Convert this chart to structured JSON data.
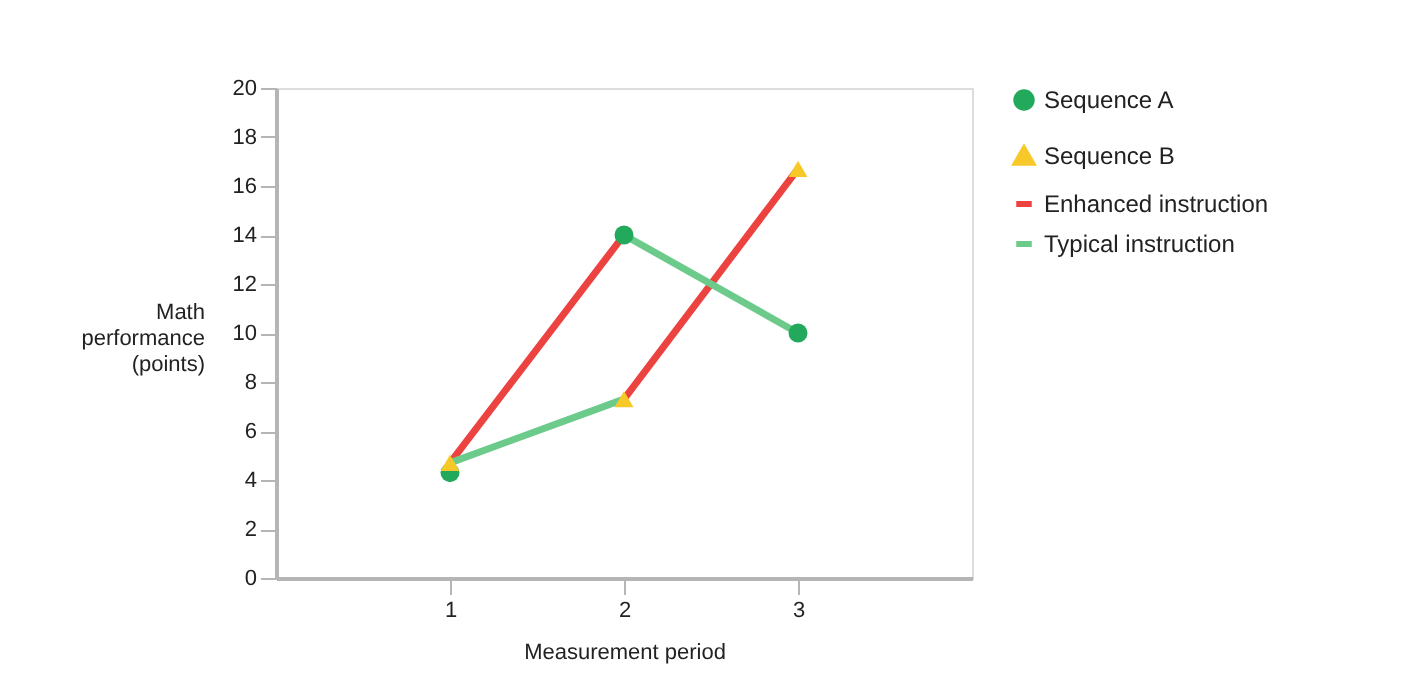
{
  "chart_data": {
    "type": "line",
    "xlabel": "Measurement period",
    "ylabel": "Math performance (points)",
    "xlim": [
      0,
      4
    ],
    "xticks": [
      1,
      2,
      3
    ],
    "ylim": [
      0,
      20
    ],
    "yticks": [
      0,
      2,
      4,
      6,
      8,
      10,
      12,
      14,
      16,
      18,
      20
    ],
    "grid": false,
    "legend": "right",
    "series": [
      {
        "name": "Sequence A",
        "type": "scatter",
        "marker": "circle",
        "color": "#22a95b",
        "x": [
          1,
          2,
          3
        ],
        "values": [
          4.3,
          14.0,
          10.0
        ]
      },
      {
        "name": "Sequence B",
        "type": "scatter",
        "marker": "triangle",
        "color": "#f7c928",
        "x": [
          1,
          2,
          3
        ],
        "values": [
          4.7,
          7.3,
          16.7
        ]
      },
      {
        "name": "Enhanced instruction",
        "color": "#ec4341",
        "x": [
          1,
          2,
          null,
          2,
          3
        ],
        "values": [
          4.7,
          14.0,
          null,
          7.3,
          16.7
        ]
      },
      {
        "name": "Typical instruction",
        "color": "#6ccb8b",
        "x": [
          1,
          2,
          null,
          2,
          3
        ],
        "values": [
          4.7,
          7.3,
          null,
          14.0,
          10.0
        ]
      }
    ]
  }
}
